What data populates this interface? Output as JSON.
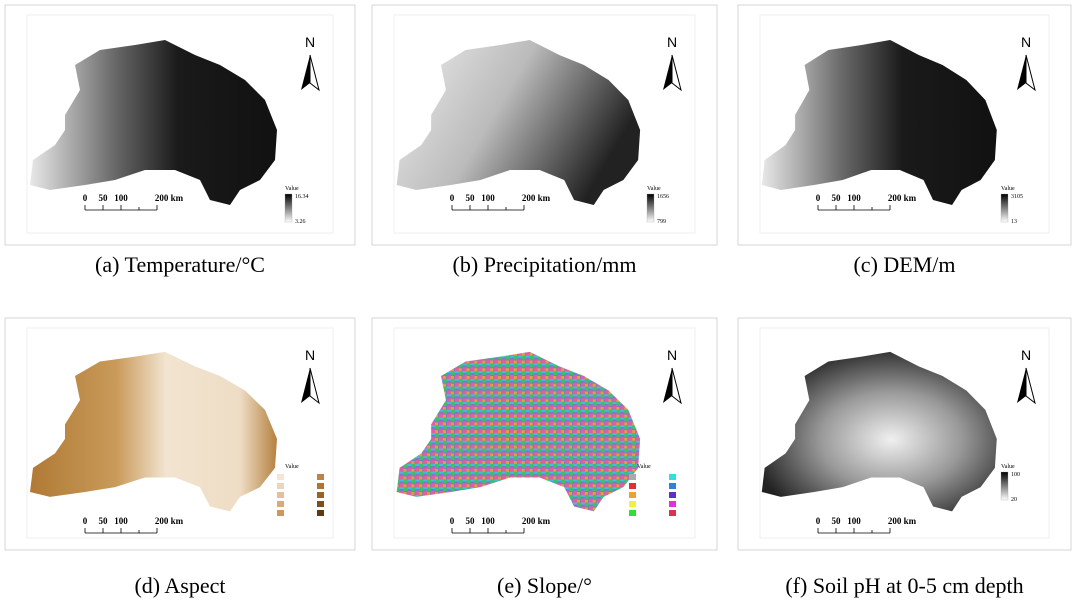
{
  "panels": [
    {
      "caption": "(a) Temperature/°C",
      "north": "N",
      "scale_bar": [
        "0",
        "50",
        "100",
        "200 km"
      ],
      "legend_title": "Value",
      "legend_labels": [
        "16.34",
        "3.26"
      ]
    },
    {
      "caption": "(b) Precipitation/mm",
      "north": "N",
      "scale_bar": [
        "0",
        "50",
        "100",
        "200 km"
      ],
      "legend_title": "Value",
      "legend_labels": [
        "1656",
        "799"
      ]
    },
    {
      "caption": "(c) DEM/m",
      "north": "N",
      "scale_bar": [
        "0",
        "50",
        "100",
        "200 km"
      ],
      "legend_title": "Value",
      "legend_labels": [
        "3105",
        "13"
      ]
    },
    {
      "caption": "(d) Aspect",
      "north": "N",
      "scale_bar": [
        "0",
        "50",
        "100",
        "200 km"
      ],
      "legend_title": "Value"
    },
    {
      "caption": "(e) Slope/°",
      "north": "N",
      "scale_bar": [
        "0",
        "50",
        "100",
        "200 km"
      ],
      "legend_title": "Value"
    },
    {
      "caption": "(f) Soil pH at 0-5 cm depth",
      "north": "N",
      "scale_bar": [
        "0",
        "50",
        "100",
        "200 km"
      ],
      "legend_title": "Value",
      "legend_labels": [
        "100",
        "20"
      ]
    }
  ]
}
